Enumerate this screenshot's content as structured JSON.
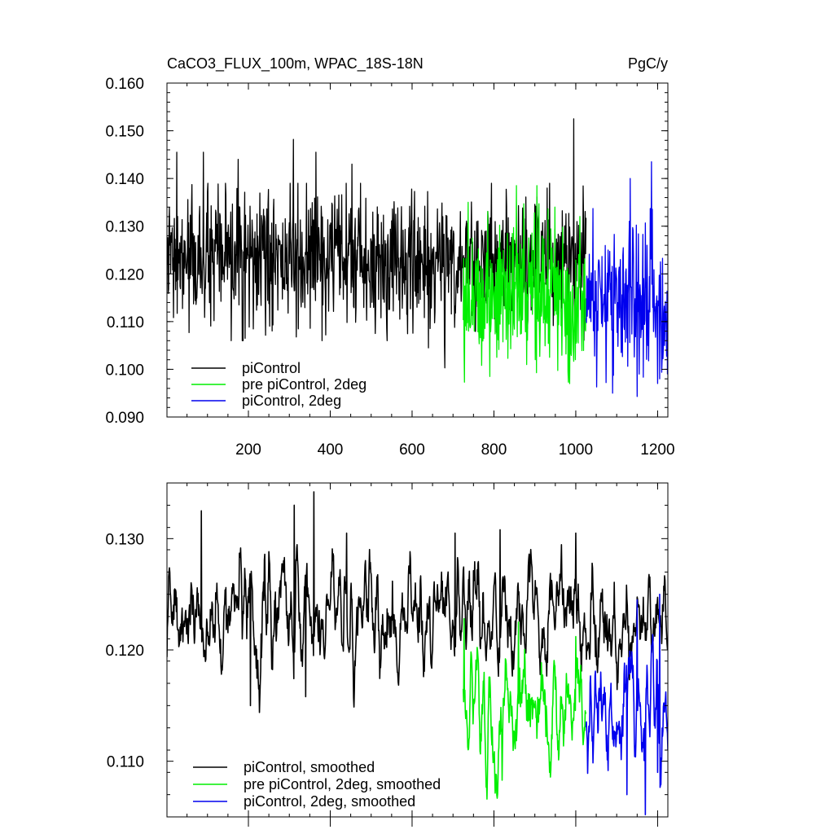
{
  "chart_data": [
    {
      "type": "line",
      "title": "CaCO3_FLUX_100m, WPAC_18S-18N",
      "units": "PgC/y",
      "xlabel": "",
      "ylabel": "",
      "xlim": [
        1,
        1225
      ],
      "ylim": [
        0.09,
        0.16
      ],
      "x_ticks": [
        200,
        400,
        600,
        800,
        1000,
        1200
      ],
      "x_tick_labels": [
        "200",
        "400",
        "600",
        "800",
        "1000",
        "1200"
      ],
      "y_ticks": [
        0.09,
        0.1,
        0.11,
        0.12,
        0.13,
        0.14,
        0.15,
        0.16
      ],
      "y_tick_labels": [
        "0.090",
        "0.100",
        "0.110",
        "0.120",
        "0.130",
        "0.140",
        "0.150",
        "0.160"
      ],
      "legend_position": "bottom-left",
      "grid": false,
      "series": [
        {
          "name": "piControl",
          "color": "#000000",
          "x_range": [
            1,
            1025
          ],
          "mean": 0.1225,
          "amplitude": 0.0075,
          "smoothed": false,
          "extremes": [
            [
              25,
              0.1455
            ],
            [
              90,
              0.1455
            ],
            [
              175,
              0.144
            ],
            [
              310,
              0.1482
            ],
            [
              365,
              0.1455
            ],
            [
              453,
              0.143
            ],
            [
              510,
              0.141
            ],
            [
              192,
              0.1065
            ],
            [
              510,
              0.1075
            ],
            [
              640,
              0.1045
            ],
            [
              680,
              0.1003
            ],
            [
              995,
              0.1525
            ],
            [
              930,
              0.138
            ]
          ]
        },
        {
          "name": "pre piControl, 2deg",
          "color": "#00ee00",
          "x_range": [
            725,
            1025
          ],
          "mean": 0.116,
          "amplitude": 0.0085,
          "smoothed": false,
          "extremes": [
            [
              737,
              0.135
            ],
            [
              855,
              0.1385
            ],
            [
              905,
              0.1385
            ],
            [
              790,
              0.0985
            ],
            [
              985,
              0.097
            ],
            [
              880,
              0.101
            ]
          ]
        },
        {
          "name": "piControl, 2deg",
          "color": "#0000ee",
          "x_range": [
            1025,
            1225
          ],
          "mean": 0.115,
          "amplitude": 0.0085,
          "smoothed": false,
          "extremes": [
            [
              1133,
              0.14
            ],
            [
              1185,
              0.1435
            ],
            [
              1090,
              0.095
            ],
            [
              1150,
              0.0943
            ],
            [
              1205,
              0.098
            ]
          ]
        }
      ]
    },
    {
      "type": "line",
      "title": "",
      "units": "",
      "xlabel": "",
      "ylabel": "",
      "xlim": [
        1,
        1225
      ],
      "ylim": [
        0.105,
        0.135
      ],
      "x_ticks": [
        200,
        400,
        600,
        800,
        1000,
        1200
      ],
      "x_tick_labels": [],
      "y_ticks": [
        0.11,
        0.12,
        0.13
      ],
      "y_tick_labels": [
        "0.110",
        "0.120",
        "0.130"
      ],
      "legend_position": "bottom-left",
      "grid": false,
      "series": [
        {
          "name": "piControl, smoothed",
          "color": "#000000",
          "x_range": [
            1,
            1225
          ],
          "mean": 0.123,
          "amplitude": 0.0025,
          "smoothed": true,
          "extremes": [
            [
              85,
              0.1325
            ],
            [
              312,
              0.133
            ],
            [
              360,
              0.1342
            ],
            [
              440,
              0.1305
            ],
            [
              205,
              0.115
            ],
            [
              340,
              0.1158
            ],
            [
              705,
              0.1305
            ],
            [
              815,
              0.1308
            ],
            [
              1000,
              0.1305
            ]
          ]
        },
        {
          "name": "pre piControl, 2deg, smoothed",
          "color": "#00ee00",
          "x_range": [
            725,
            1025
          ],
          "mean": 0.115,
          "amplitude": 0.0028,
          "smoothed": true,
          "extremes": [
            [
              727,
              0.1228
            ],
            [
              860,
              0.1225
            ],
            [
              820,
              0.1083
            ],
            [
              780,
              0.1095
            ],
            [
              1000,
              0.1212
            ]
          ]
        },
        {
          "name": "piControl, 2deg, smoothed",
          "color": "#0000ee",
          "x_range": [
            1025,
            1225
          ],
          "mean": 0.115,
          "amplitude": 0.0028,
          "smoothed": true,
          "extremes": [
            [
              1150,
              0.1245
            ],
            [
              1205,
              0.125
            ],
            [
              1125,
              0.107
            ],
            [
              1170,
              0.1052
            ],
            [
              1200,
              0.109
            ]
          ]
        }
      ]
    }
  ]
}
